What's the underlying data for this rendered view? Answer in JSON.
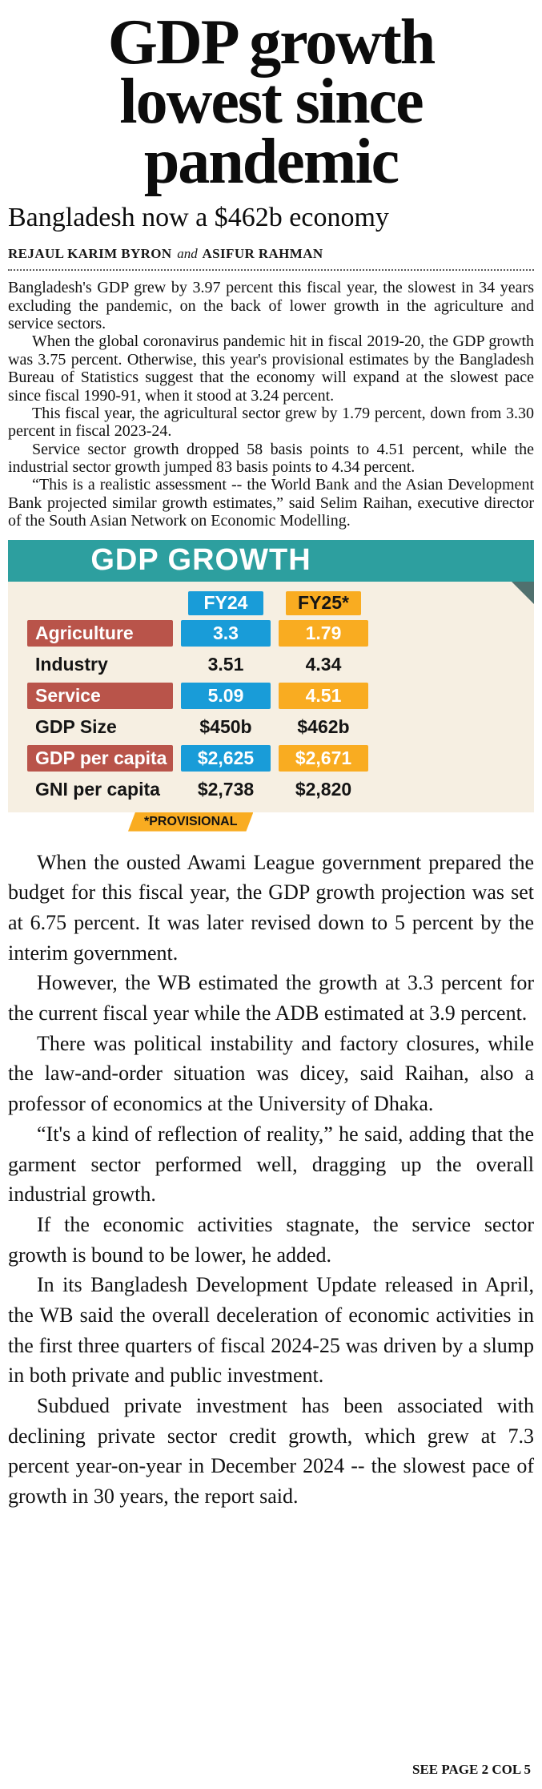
{
  "article": {
    "headline_lines": [
      "GDP growth",
      "lowest since",
      "pandemic"
    ],
    "subheadline": "Bangladesh now a $462b economy",
    "byline": {
      "author1": "REJAUL KARIM BYRON",
      "connector": "and",
      "author2": "ASIFUR RAHMAN"
    },
    "body_top": [
      "Bangladesh's GDP grew by 3.97 percent this fiscal year, the slowest in 34 years excluding the pandemic, on the back of lower growth in the agriculture and service sectors.",
      "When the global coronavirus pandemic hit in fiscal 2019-20, the GDP growth was 3.75 percent. Otherwise, this year's provisional estimates by the Bangladesh Bureau of Statistics suggest that the economy will expand at the slowest pace since fiscal 1990-91, when it stood at 3.24 percent.",
      "This fiscal year, the agricultural sector grew by 1.79 percent, down from 3.30 percent in fiscal 2023-24.",
      "Service sector growth dropped 58 basis points to 4.51 percent, while the industrial sector growth jumped 83 basis points to 4.34 percent.",
      "“This is a realistic assessment -- the World Bank and the Asian Development Bank projected similar growth estimates,” said Selim Raihan, executive director of the South Asian Network on Economic Modelling."
    ],
    "body_bottom": [
      "When the ousted Awami League government prepared the budget for this fiscal year, the GDP growth projection was set at 6.75 percent. It was later revised down to 5 percent by the interim government.",
      "However, the WB estimated the growth at 3.3 percent for the current fiscal year while the ADB estimated at 3.9 percent.",
      "There was political instability and factory closures, while the law-and-order situation was dicey, said Raihan, also a professor of economics at the University of Dhaka.",
      "“It's a kind of reflection of reality,” he said, adding that the garment sector performed well, dragging up the overall industrial growth.",
      "If the economic activities stagnate, the service sector growth is bound to be lower, he added.",
      "In its Bangladesh Development Update released in April, the WB said the overall deceleration of economic activities in the first three quarters of fiscal 2024-25 was driven by a slump in both private and public investment.",
      "Subdued private investment has been associated with declining private sector credit growth, which grew at 7.3 percent year-on-year in December 2024 -- the slowest pace of growth in 30 years, the report said."
    ],
    "continuation": "SEE PAGE 2 COL 5"
  },
  "chart_data": {
    "type": "table",
    "title": "GDP GROWTH",
    "columns": [
      "FY24",
      "FY25*"
    ],
    "rows": [
      {
        "label": "Agriculture",
        "fy24": "3.3",
        "fy25": "1.79",
        "highlighted": true
      },
      {
        "label": "Industry",
        "fy24": "3.51",
        "fy25": "4.34",
        "highlighted": false
      },
      {
        "label": "Service",
        "fy24": "5.09",
        "fy25": "4.51",
        "highlighted": true
      },
      {
        "label": "GDP Size",
        "fy24": "$450b",
        "fy25": "$462b",
        "highlighted": false
      },
      {
        "label": "GDP per capita",
        "fy24": "$2,625",
        "fy25": "$2,671",
        "highlighted": true
      },
      {
        "label": "GNI per capita",
        "fy24": "$2,738",
        "fy25": "$2,820",
        "highlighted": false
      }
    ],
    "footnote": "*PROVISIONAL",
    "colors": {
      "title_bar": "#2d9f9f",
      "panel": "#f6efe2",
      "fy24_accent": "#199cd8",
      "fy25_accent": "#f9ac21",
      "highlight_label": "#b9544a"
    }
  }
}
